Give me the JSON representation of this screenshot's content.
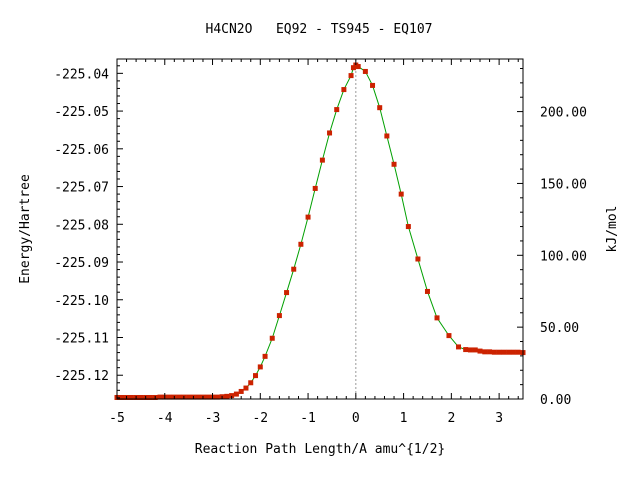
{
  "chart_data": {
    "type": "line",
    "title": "H4CN2O   EQ92 - TS945 - EQ107",
    "xlabel": "Reaction Path Length/A amu^{1/2}",
    "ylabel": "Energy/Hartree",
    "y2label": "kJ/mol",
    "xlim": [
      -5.0,
      3.5
    ],
    "ylim": [
      -225.1263,
      -225.0362
    ],
    "y2lim": [
      0,
      236.6
    ],
    "xticks": [
      -5,
      -4,
      -3,
      -2,
      -1,
      0,
      1,
      2,
      3
    ],
    "xtick_labels": [
      "-5",
      "-4",
      "-3",
      "-2",
      "-1",
      "0",
      "1",
      "2",
      "3"
    ],
    "yticks": [
      -225.12,
      -225.11,
      -225.1,
      -225.09,
      -225.08,
      -225.07,
      -225.06,
      -225.05,
      -225.04
    ],
    "ytick_labels": [
      "-225.12",
      "-225.11",
      "-225.10",
      "-225.09",
      "-225.08",
      "-225.07",
      "-225.06",
      "-225.05",
      "-225.04"
    ],
    "y2ticks": [
      0,
      50,
      100,
      150,
      200
    ],
    "y2tick_labels": [
      "0.00",
      "50.00",
      "100.00",
      "150.00",
      "200.00"
    ],
    "ts_marker_x": 0,
    "grid": false,
    "legend": "none",
    "colors": {
      "line": "#00a000",
      "points": "#cc2200",
      "ts_line": "#999999",
      "axes": "#000000"
    },
    "series": [
      {
        "x": [
          -5.0,
          -4.9,
          -4.8,
          -4.7,
          -4.6,
          -4.5,
          -4.4,
          -4.3,
          -4.2,
          -4.1,
          -4.0,
          -3.9,
          -3.8,
          -3.7,
          -3.6,
          -3.5,
          -3.4,
          -3.3,
          -3.2,
          -3.1,
          -3.0,
          -2.9,
          -2.8,
          -2.7,
          -2.6,
          -2.5,
          -2.4,
          -2.3,
          -2.2,
          -2.1,
          -2.0,
          -1.9,
          -1.75,
          -1.6,
          -1.45,
          -1.3,
          -1.15,
          -1.0,
          -0.85,
          -0.7,
          -0.55,
          -0.4,
          -0.25,
          -0.1,
          -0.05,
          0.0,
          0.05,
          0.2,
          0.35,
          0.5,
          0.65,
          0.8,
          0.95,
          1.1,
          1.3,
          1.5,
          1.7,
          1.95,
          2.15,
          2.3,
          2.4,
          2.5,
          2.6,
          2.7,
          2.8,
          2.9,
          3.0,
          3.1,
          3.2,
          3.3,
          3.4,
          3.5
        ],
        "y": [
          -225.1259,
          -225.1259,
          -225.1259,
          -225.1259,
          -225.1259,
          -225.1259,
          -225.1259,
          -225.1259,
          -225.1259,
          -225.1258,
          -225.1258,
          -225.1258,
          -225.1258,
          -225.1258,
          -225.1258,
          -225.1258,
          -225.1258,
          -225.1258,
          -225.1258,
          -225.1258,
          -225.1258,
          -225.1258,
          -225.1257,
          -225.1256,
          -225.1254,
          -225.125,
          -225.1243,
          -225.1234,
          -225.122,
          -225.1201,
          -225.1178,
          -225.115,
          -225.1102,
          -225.1042,
          -225.0981,
          -225.0919,
          -225.0853,
          -225.0781,
          -225.0705,
          -225.063,
          -225.0558,
          -225.0496,
          -225.0443,
          -225.0406,
          -225.0385,
          -225.0378,
          -225.0382,
          -225.0395,
          -225.0432,
          -225.0491,
          -225.0566,
          -225.0641,
          -225.072,
          -225.0806,
          -225.0892,
          -225.0978,
          -225.1048,
          -225.1095,
          -225.1125,
          -225.1132,
          -225.1133,
          -225.1133,
          -225.1136,
          -225.1138,
          -225.1138,
          -225.1139,
          -225.1139,
          -225.1139,
          -225.1139,
          -225.1139,
          -225.1139,
          -225.114
        ]
      }
    ]
  }
}
